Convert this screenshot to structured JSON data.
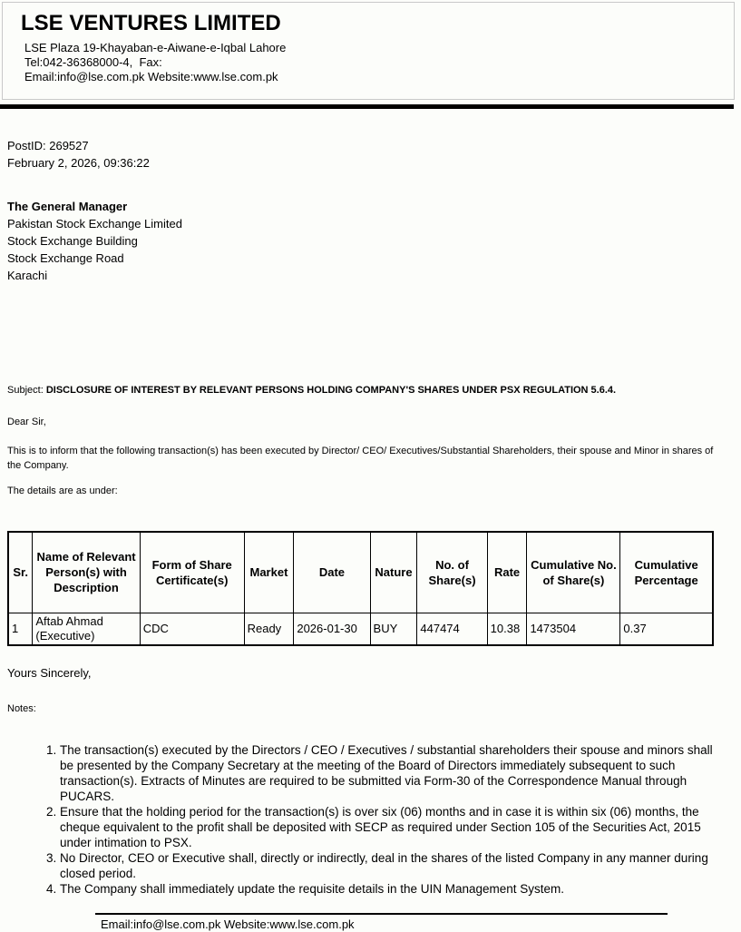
{
  "letterhead": {
    "company_name": "LSE VENTURES LIMITED",
    "address_line1": "LSE Plaza 19-Khayaban-e-Aiwane-e-Iqbal Lahore",
    "address_line2": "Tel:042-36368000-4,  Fax:",
    "address_line3": "Email:info@lse.com.pk Website:www.lse.com.pk"
  },
  "meta": {
    "post_id": "PostID: 269527",
    "datetime": "February 2, 2026, 09:36:22"
  },
  "recipient": {
    "line1": "The General Manager",
    "line2": "Pakistan Stock Exchange Limited",
    "line3": "Stock Exchange Building",
    "line4": "Stock Exchange Road",
    "line5": "Karachi"
  },
  "subject": {
    "label": "Subject:",
    "text": "DISCLOSURE OF INTEREST BY RELEVANT PERSONS HOLDING COMPANY'S SHARES UNDER PSX REGULATION 5.6.4."
  },
  "body": {
    "salutation": "Dear Sir,",
    "paragraph": "This is to inform that the following transaction(s) has been executed by Director/ CEO/ Executives/Substantial Shareholders, their spouse and Minor in shares of the Company.",
    "details_intro": "The details are as under:"
  },
  "table": {
    "headers": [
      "Sr.",
      "Name of Relevant Person(s) with Description",
      "Form of Share Certificate(s)",
      "Market",
      "Date",
      "Nature",
      "No. of Share(s)",
      "Rate",
      "Cumulative No. of Share(s)",
      "Cumulative Percentage"
    ],
    "rows": [
      [
        "1",
        "Aftab Ahmad (Executive)",
        "CDC",
        "Ready",
        "2026-01-30",
        "BUY",
        "447474",
        "10.38",
        "1473504",
        "0.37"
      ]
    ]
  },
  "closing": {
    "signoff": "Yours Sincerely,",
    "notes_label": "Notes:"
  },
  "notes": [
    "The transaction(s) executed by the Directors / CEO / Executives / substantial shareholders their spouse and minors shall be presented by the Company Secretary at the meeting of the Board of Directors immediately subsequent to such transaction(s). Extracts of Minutes are required to be submitted via Form-30 of the Correspondence Manual through PUCARS.",
    "Ensure that the holding period for the transaction(s) is over six (06) months and in case it is within six (06) months, the cheque equivalent to the profit shall be deposited with SECP as required under Section 105 of the Securities Act, 2015 under intimation to PSX.",
    "No Director, CEO or Executive shall, directly or indirectly, deal in the shares of the listed Company in any manner during closed period.",
    "The Company shall immediately update the requisite details in the UIN Management System."
  ],
  "footer": {
    "text": "Email:info@lse.com.pk Website:www.lse.com.pk"
  }
}
